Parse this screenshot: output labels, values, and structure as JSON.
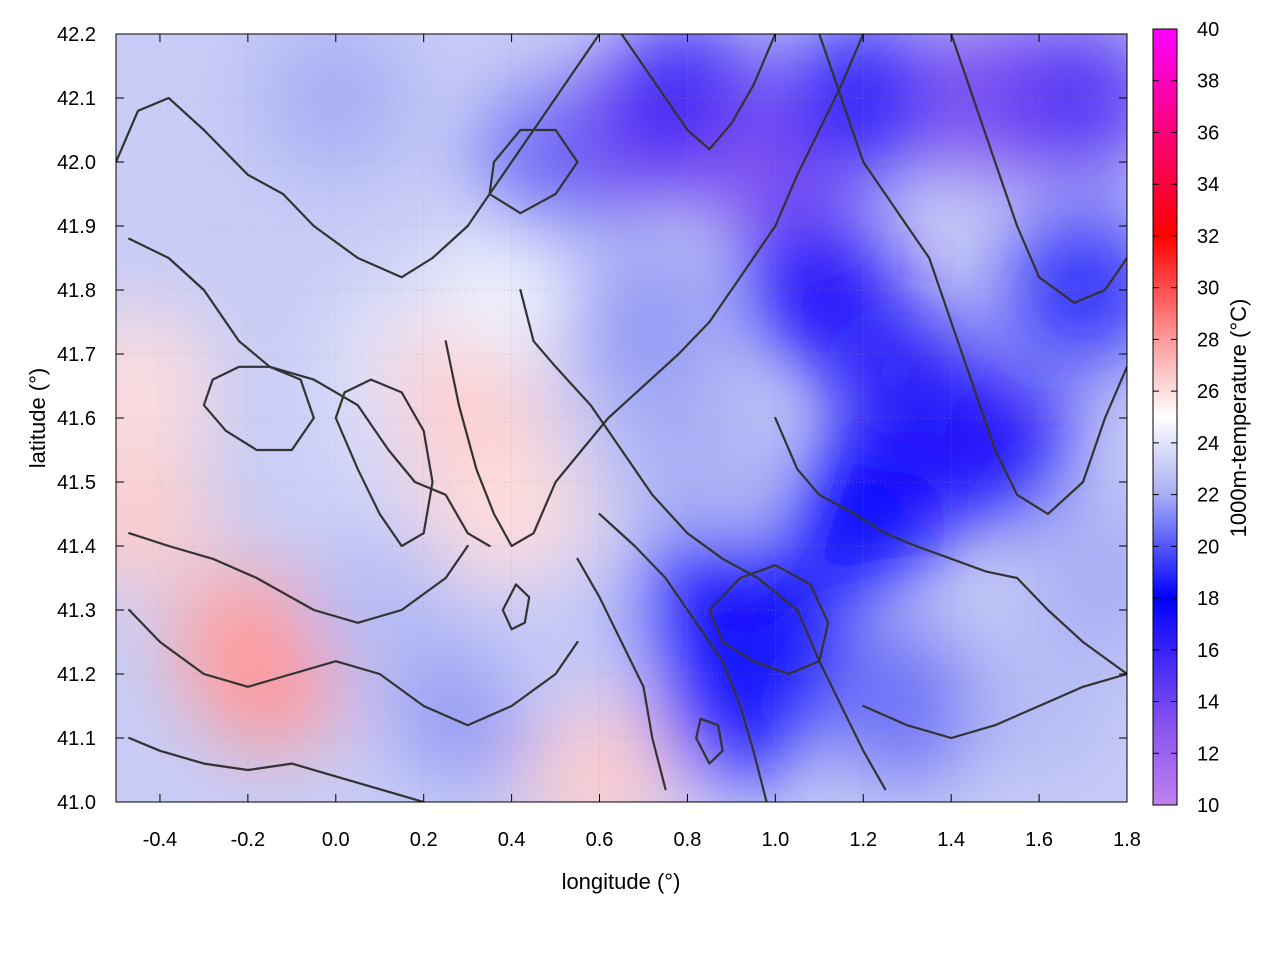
{
  "chart_data": {
    "type": "heatmap",
    "title": "",
    "xlabel": "longitude (°)",
    "ylabel": "latitude (°)",
    "colorbar_label": "1000m-temperature (°C)",
    "xlim": [
      -0.5,
      1.8
    ],
    "ylim": [
      41.0,
      42.2
    ],
    "x_ticks": [
      -0.4,
      -0.2,
      0.0,
      0.2,
      0.4,
      0.6,
      0.8,
      1.0,
      1.2,
      1.4,
      1.6,
      1.8
    ],
    "x_tick_labels": [
      "-0.4",
      "-0.2",
      "0.0",
      "0.2",
      "0.4",
      "0.6",
      "0.8",
      "1.0",
      "1.2",
      "1.4",
      "1.6",
      "1.8"
    ],
    "y_ticks": [
      41.0,
      41.1,
      41.2,
      41.3,
      41.4,
      41.5,
      41.6,
      41.7,
      41.8,
      41.9,
      42.0,
      42.1,
      42.2
    ],
    "y_tick_labels": [
      "41.0",
      "41.1",
      "41.2",
      "41.3",
      "41.4",
      "41.5",
      "41.6",
      "41.7",
      "41.8",
      "41.9",
      "42.0",
      "42.1",
      "42.2"
    ],
    "colorbar_range": [
      10,
      40
    ],
    "colorbar_ticks": [
      10,
      12,
      14,
      16,
      18,
      20,
      22,
      24,
      26,
      28,
      30,
      32,
      34,
      36,
      38,
      40
    ],
    "colorbar_tick_labels": [
      "10",
      "12",
      "14",
      "16",
      "18",
      "20",
      "22",
      "24",
      "26",
      "28",
      "30",
      "32",
      "34",
      "36",
      "38",
      "40"
    ],
    "colormap": [
      {
        "value": 10,
        "color": "#c080f0"
      },
      {
        "value": 13,
        "color": "#8a55ee"
      },
      {
        "value": 18,
        "color": "#0000ff"
      },
      {
        "value": 22,
        "color": "#a6aef4"
      },
      {
        "value": 25,
        "color": "#ffffff"
      },
      {
        "value": 28,
        "color": "#ff9a9a"
      },
      {
        "value": 32,
        "color": "#ff0000"
      },
      {
        "value": 36,
        "color": "#ff007a"
      },
      {
        "value": 40,
        "color": "#ff00ff"
      }
    ],
    "grid": true,
    "contours": true,
    "temperature_samples": [
      {
        "lon": -0.45,
        "lat": 41.45,
        "temp": 26.5
      },
      {
        "lon": -0.45,
        "lat": 41.65,
        "temp": 26.0
      },
      {
        "lon": -0.2,
        "lat": 41.25,
        "temp": 27.5
      },
      {
        "lon": -0.15,
        "lat": 41.2,
        "temp": 28.0
      },
      {
        "lon": 0.1,
        "lat": 41.55,
        "temp": 23.5
      },
      {
        "lon": 0.15,
        "lat": 41.7,
        "temp": 24.0
      },
      {
        "lon": 0.3,
        "lat": 41.65,
        "temp": 26.5
      },
      {
        "lon": 0.35,
        "lat": 41.5,
        "temp": 26.5
      },
      {
        "lon": 0.4,
        "lat": 41.45,
        "temp": 26.0
      },
      {
        "lon": 0.4,
        "lat": 41.8,
        "temp": 24.5
      },
      {
        "lon": 0.6,
        "lat": 41.05,
        "temp": 26.5
      },
      {
        "lon": 0.0,
        "lat": 42.1,
        "temp": 22.0
      },
      {
        "lon": 0.5,
        "lat": 42.0,
        "temp": 20.5
      },
      {
        "lon": 0.7,
        "lat": 42.05,
        "temp": 13.5
      },
      {
        "lon": 0.8,
        "lat": 42.1,
        "temp": 16.0
      },
      {
        "lon": 1.0,
        "lat": 42.0,
        "temp": 13.5
      },
      {
        "lon": 1.2,
        "lat": 42.1,
        "temp": 16.5
      },
      {
        "lon": 1.5,
        "lat": 42.1,
        "temp": 13.5
      },
      {
        "lon": 1.7,
        "lat": 42.1,
        "temp": 15.0
      },
      {
        "lon": 1.1,
        "lat": 41.8,
        "temp": 17.0
      },
      {
        "lon": 1.3,
        "lat": 41.65,
        "temp": 16.5
      },
      {
        "lon": 1.5,
        "lat": 41.55,
        "temp": 17.0
      },
      {
        "lon": 1.7,
        "lat": 41.8,
        "temp": 19.0
      },
      {
        "lon": 1.2,
        "lat": 41.45,
        "temp": 18.0
      },
      {
        "lon": 0.85,
        "lat": 41.3,
        "temp": 17.0
      },
      {
        "lon": 1.0,
        "lat": 41.25,
        "temp": 17.5
      },
      {
        "lon": 0.9,
        "lat": 41.15,
        "temp": 18.5
      },
      {
        "lon": 0.8,
        "lat": 41.55,
        "temp": 22.0
      },
      {
        "lon": 0.7,
        "lat": 41.75,
        "temp": 21.5
      },
      {
        "lon": 1.3,
        "lat": 41.15,
        "temp": 20.5
      },
      {
        "lon": 1.6,
        "lat": 41.15,
        "temp": 22.5
      },
      {
        "lon": 1.75,
        "lat": 41.35,
        "temp": 22.0
      },
      {
        "lon": 0.3,
        "lat": 41.15,
        "temp": 21.5
      },
      {
        "lon": 0.1,
        "lat": 41.3,
        "temp": 22.5
      },
      {
        "lon": 0.5,
        "lat": 41.25,
        "temp": 23.0
      }
    ],
    "contour_paths_lonlat": [
      [
        [
          -0.5,
          42.0
        ],
        [
          -0.45,
          42.08
        ],
        [
          -0.38,
          42.1
        ],
        [
          -0.3,
          42.05
        ],
        [
          -0.2,
          41.98
        ],
        [
          -0.12,
          41.95
        ],
        [
          -0.05,
          41.9
        ],
        [
          0.05,
          41.85
        ],
        [
          0.15,
          41.82
        ],
        [
          0.22,
          41.85
        ],
        [
          0.3,
          41.9
        ],
        [
          0.38,
          41.98
        ],
        [
          0.45,
          42.05
        ],
        [
          0.5,
          42.1
        ],
        [
          0.55,
          42.15
        ],
        [
          0.6,
          42.2
        ]
      ],
      [
        [
          -0.47,
          41.88
        ],
        [
          -0.38,
          41.85
        ],
        [
          -0.3,
          41.8
        ],
        [
          -0.22,
          41.72
        ],
        [
          -0.15,
          41.68
        ],
        [
          -0.05,
          41.66
        ],
        [
          0.05,
          41.62
        ],
        [
          0.12,
          41.55
        ],
        [
          0.18,
          41.5
        ],
        [
          0.25,
          41.48
        ],
        [
          0.3,
          41.42
        ],
        [
          0.35,
          41.4
        ]
      ],
      [
        [
          -0.47,
          41.42
        ],
        [
          -0.38,
          41.4
        ],
        [
          -0.28,
          41.38
        ],
        [
          -0.18,
          41.35
        ],
        [
          -0.05,
          41.3
        ],
        [
          0.05,
          41.28
        ],
        [
          0.15,
          41.3
        ],
        [
          0.25,
          41.35
        ],
        [
          0.3,
          41.4
        ]
      ],
      [
        [
          -0.47,
          41.3
        ],
        [
          -0.4,
          41.25
        ],
        [
          -0.3,
          41.2
        ],
        [
          -0.2,
          41.18
        ],
        [
          -0.1,
          41.2
        ],
        [
          0.0,
          41.22
        ],
        [
          0.1,
          41.2
        ],
        [
          0.2,
          41.15
        ],
        [
          0.3,
          41.12
        ],
        [
          0.4,
          41.15
        ],
        [
          0.5,
          41.2
        ],
        [
          0.55,
          41.25
        ]
      ],
      [
        [
          -0.47,
          41.1
        ],
        [
          -0.4,
          41.08
        ],
        [
          -0.3,
          41.06
        ],
        [
          -0.2,
          41.05
        ],
        [
          -0.1,
          41.06
        ],
        [
          0.0,
          41.04
        ],
        [
          0.1,
          41.02
        ],
        [
          0.2,
          41.0
        ]
      ],
      [
        [
          0.25,
          41.72
        ],
        [
          0.28,
          41.62
        ],
        [
          0.32,
          41.52
        ],
        [
          0.36,
          41.45
        ],
        [
          0.4,
          41.4
        ],
        [
          0.45,
          41.42
        ],
        [
          0.5,
          41.5
        ],
        [
          0.56,
          41.55
        ],
        [
          0.62,
          41.6
        ],
        [
          0.7,
          41.65
        ],
        [
          0.78,
          41.7
        ],
        [
          0.85,
          41.75
        ],
        [
          0.92,
          41.82
        ],
        [
          1.0,
          41.9
        ],
        [
          1.05,
          41.98
        ],
        [
          1.1,
          42.05
        ],
        [
          1.15,
          42.12
        ],
        [
          1.2,
          42.2
        ]
      ],
      [
        [
          0.42,
          41.8
        ],
        [
          0.45,
          41.72
        ],
        [
          0.5,
          41.68
        ],
        [
          0.58,
          41.62
        ],
        [
          0.65,
          41.55
        ],
        [
          0.72,
          41.48
        ],
        [
          0.8,
          41.42
        ],
        [
          0.88,
          41.38
        ],
        [
          0.96,
          41.35
        ],
        [
          1.05,
          41.3
        ],
        [
          1.1,
          41.22
        ],
        [
          1.15,
          41.15
        ],
        [
          1.2,
          41.08
        ],
        [
          1.25,
          41.02
        ]
      ],
      [
        [
          0.55,
          41.38
        ],
        [
          0.6,
          41.32
        ],
        [
          0.65,
          41.25
        ],
        [
          0.7,
          41.18
        ],
        [
          0.72,
          41.1
        ],
        [
          0.75,
          41.02
        ]
      ],
      [
        [
          0.6,
          41.45
        ],
        [
          0.68,
          41.4
        ],
        [
          0.75,
          41.35
        ],
        [
          0.82,
          41.28
        ],
        [
          0.88,
          41.22
        ],
        [
          0.92,
          41.15
        ],
        [
          0.95,
          41.08
        ],
        [
          0.98,
          41.0
        ]
      ],
      [
        [
          0.85,
          41.3
        ],
        [
          0.92,
          41.35
        ],
        [
          1.0,
          41.37
        ],
        [
          1.08,
          41.34
        ],
        [
          1.12,
          41.28
        ],
        [
          1.1,
          41.22
        ],
        [
          1.03,
          41.2
        ],
        [
          0.95,
          41.22
        ],
        [
          0.88,
          41.25
        ],
        [
          0.85,
          41.3
        ]
      ],
      [
        [
          1.0,
          41.6
        ],
        [
          1.05,
          41.52
        ],
        [
          1.1,
          41.48
        ],
        [
          1.18,
          41.45
        ],
        [
          1.25,
          41.42
        ],
        [
          1.32,
          41.4
        ],
        [
          1.4,
          41.38
        ],
        [
          1.48,
          41.36
        ],
        [
          1.55,
          41.35
        ],
        [
          1.62,
          41.3
        ],
        [
          1.7,
          41.25
        ],
        [
          1.8,
          41.2
        ]
      ],
      [
        [
          1.2,
          41.15
        ],
        [
          1.3,
          41.12
        ],
        [
          1.4,
          41.1
        ],
        [
          1.5,
          41.12
        ],
        [
          1.6,
          41.15
        ],
        [
          1.7,
          41.18
        ],
        [
          1.8,
          41.2
        ]
      ],
      [
        [
          1.1,
          42.2
        ],
        [
          1.15,
          42.1
        ],
        [
          1.2,
          42.0
        ],
        [
          1.28,
          41.92
        ],
        [
          1.35,
          41.85
        ],
        [
          1.4,
          41.75
        ],
        [
          1.45,
          41.65
        ],
        [
          1.5,
          41.55
        ],
        [
          1.55,
          41.48
        ],
        [
          1.62,
          41.45
        ],
        [
          1.7,
          41.5
        ],
        [
          1.75,
          41.6
        ],
        [
          1.8,
          41.68
        ]
      ],
      [
        [
          0.65,
          42.2
        ],
        [
          0.7,
          42.15
        ],
        [
          0.75,
          42.1
        ],
        [
          0.8,
          42.05
        ],
        [
          0.85,
          42.02
        ],
        [
          0.9,
          42.06
        ],
        [
          0.95,
          42.12
        ],
        [
          1.0,
          42.2
        ]
      ],
      [
        [
          1.4,
          42.2
        ],
        [
          1.45,
          42.1
        ],
        [
          1.5,
          42.0
        ],
        [
          1.55,
          41.9
        ],
        [
          1.6,
          41.82
        ],
        [
          1.68,
          41.78
        ],
        [
          1.75,
          41.8
        ],
        [
          1.8,
          41.85
        ]
      ],
      [
        [
          0.0,
          41.6
        ],
        [
          0.05,
          41.52
        ],
        [
          0.1,
          41.45
        ],
        [
          0.15,
          41.4
        ],
        [
          0.2,
          41.42
        ],
        [
          0.22,
          41.5
        ],
        [
          0.2,
          41.58
        ],
        [
          0.15,
          41.64
        ],
        [
          0.08,
          41.66
        ],
        [
          0.02,
          41.64
        ],
        [
          0.0,
          41.6
        ]
      ],
      [
        [
          -0.3,
          41.62
        ],
        [
          -0.25,
          41.58
        ],
        [
          -0.18,
          41.55
        ],
        [
          -0.1,
          41.55
        ],
        [
          -0.05,
          41.6
        ],
        [
          -0.08,
          41.66
        ],
        [
          -0.15,
          41.68
        ],
        [
          -0.22,
          41.68
        ],
        [
          -0.28,
          41.66
        ],
        [
          -0.3,
          41.62
        ]
      ],
      [
        [
          0.35,
          41.95
        ],
        [
          0.42,
          41.92
        ],
        [
          0.5,
          41.95
        ],
        [
          0.55,
          42.0
        ],
        [
          0.5,
          42.05
        ],
        [
          0.42,
          42.05
        ],
        [
          0.36,
          42.0
        ],
        [
          0.35,
          41.95
        ]
      ],
      [
        [
          0.82,
          41.1
        ],
        [
          0.85,
          41.06
        ],
        [
          0.88,
          41.08
        ],
        [
          0.87,
          41.12
        ],
        [
          0.83,
          41.13
        ],
        [
          0.82,
          41.1
        ]
      ],
      [
        [
          0.38,
          41.3
        ],
        [
          0.4,
          41.27
        ],
        [
          0.43,
          41.28
        ],
        [
          0.44,
          41.32
        ],
        [
          0.41,
          41.34
        ],
        [
          0.38,
          41.3
        ]
      ]
    ]
  }
}
